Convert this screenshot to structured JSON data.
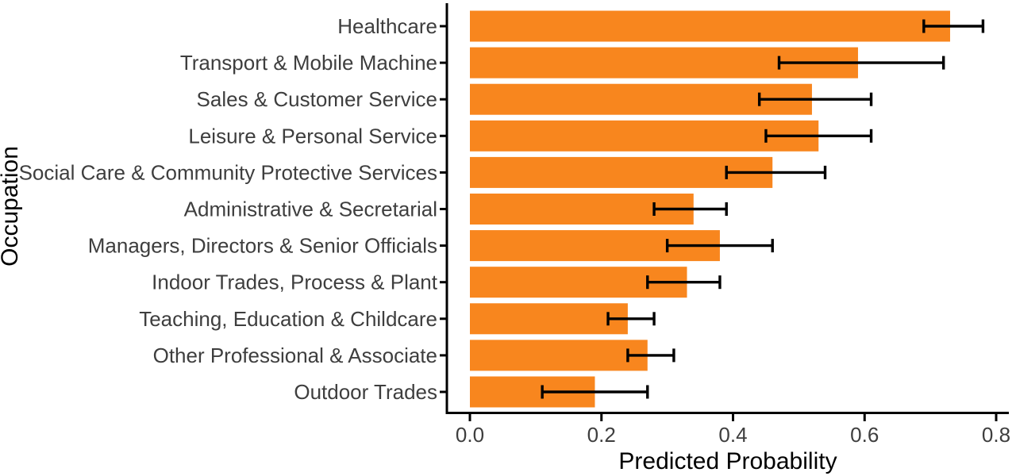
{
  "chart_data": {
    "type": "bar",
    "orientation": "horizontal",
    "title": "",
    "xlabel": "Predicted Probability",
    "ylabel": "Occupation",
    "categories": [
      "Healthcare",
      "Transport & Mobile Machine",
      "Sales & Customer Service",
      "Leisure & Personal Service",
      "Social Care & Community Protective Services",
      "Administrative & Secretarial",
      "Managers, Directors & Senior Officials",
      "Indoor Trades, Process & Plant",
      "Teaching, Education & Childcare",
      "Other Professional & Associate",
      "Outdoor Trades"
    ],
    "series": [
      {
        "name": "Predicted Probability",
        "values": [
          0.73,
          0.59,
          0.52,
          0.53,
          0.46,
          0.34,
          0.38,
          0.33,
          0.24,
          0.27,
          0.19
        ],
        "ci_low": [
          0.69,
          0.47,
          0.44,
          0.45,
          0.39,
          0.28,
          0.3,
          0.27,
          0.21,
          0.24,
          0.11
        ],
        "ci_high": [
          0.78,
          0.72,
          0.61,
          0.61,
          0.54,
          0.39,
          0.46,
          0.38,
          0.28,
          0.31,
          0.27
        ]
      }
    ],
    "x_ticks": [
      "0.0",
      "0.2",
      "0.4",
      "0.6",
      "0.8"
    ],
    "xlim": [
      -0.035,
      0.82
    ],
    "grid": false,
    "legend": false,
    "colors": {
      "bar": "#F8861E",
      "error_bar": "#000000",
      "axis_line": "#000000",
      "tick_label": "#3E3E3E",
      "category_label": "#3E3E3E",
      "axis_title": "#000000",
      "background": "#FFFFFF"
    }
  }
}
